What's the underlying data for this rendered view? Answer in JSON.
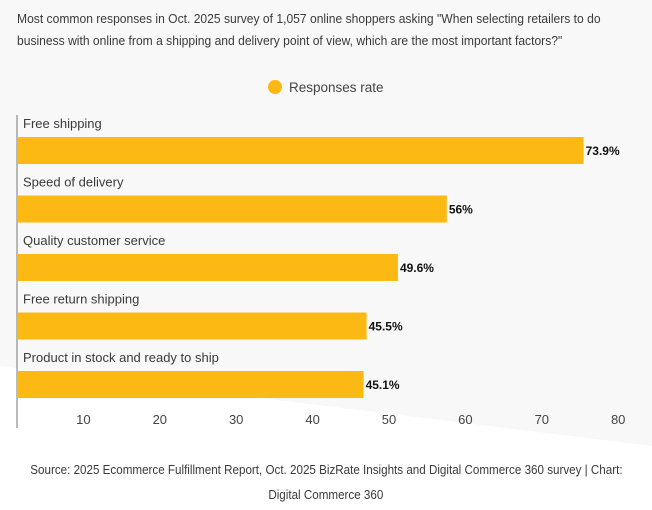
{
  "title": "Most common responses in Oct. 2025 survey of 1,057 online shoppers asking \"When selecting retailers to do business with online from a shipping and delivery point of view, which are the most important factors?\"",
  "source_line1": "Source: 2025 Ecommerce Fulfillment Report, Oct. 2025 BizRate Insights and Digital Commerce 360 survey | Chart:",
  "source_line2": "Digital Commerce 360",
  "colors": {
    "bar": "#FDB913",
    "background_top": "#F8F8F8",
    "background_bottom": "#FFFFFF",
    "axis": "#777777",
    "label_text": "#3A3A3A",
    "value_text": "#111111"
  },
  "chart_data": {
    "type": "bar",
    "orientation": "horizontal",
    "title": "Most common responses in Oct. 2025 survey of 1,057 online shoppers asking \"When selecting retailers to do business with online from a shipping and delivery point of view, which are the most important factors?\"",
    "xlabel": "",
    "ylabel": "",
    "categories": [
      "Free shipping",
      "Speed of delivery",
      "Quality customer service",
      "Free return shipping",
      "Product in stock and ready to ship"
    ],
    "series": [
      {
        "name": "Responses rate",
        "values": [
          73.9,
          56,
          49.6,
          45.5,
          45.1
        ],
        "value_labels": [
          "73.9%",
          "56%",
          "49.6%",
          "45.5%",
          "45.1%"
        ]
      }
    ],
    "xlim": [
      0,
      80
    ],
    "xticks": [
      10,
      20,
      30,
      40,
      50,
      60,
      70,
      80
    ],
    "grid": false,
    "legend": {
      "position": "top-center",
      "entries": [
        "Responses rate"
      ]
    }
  }
}
